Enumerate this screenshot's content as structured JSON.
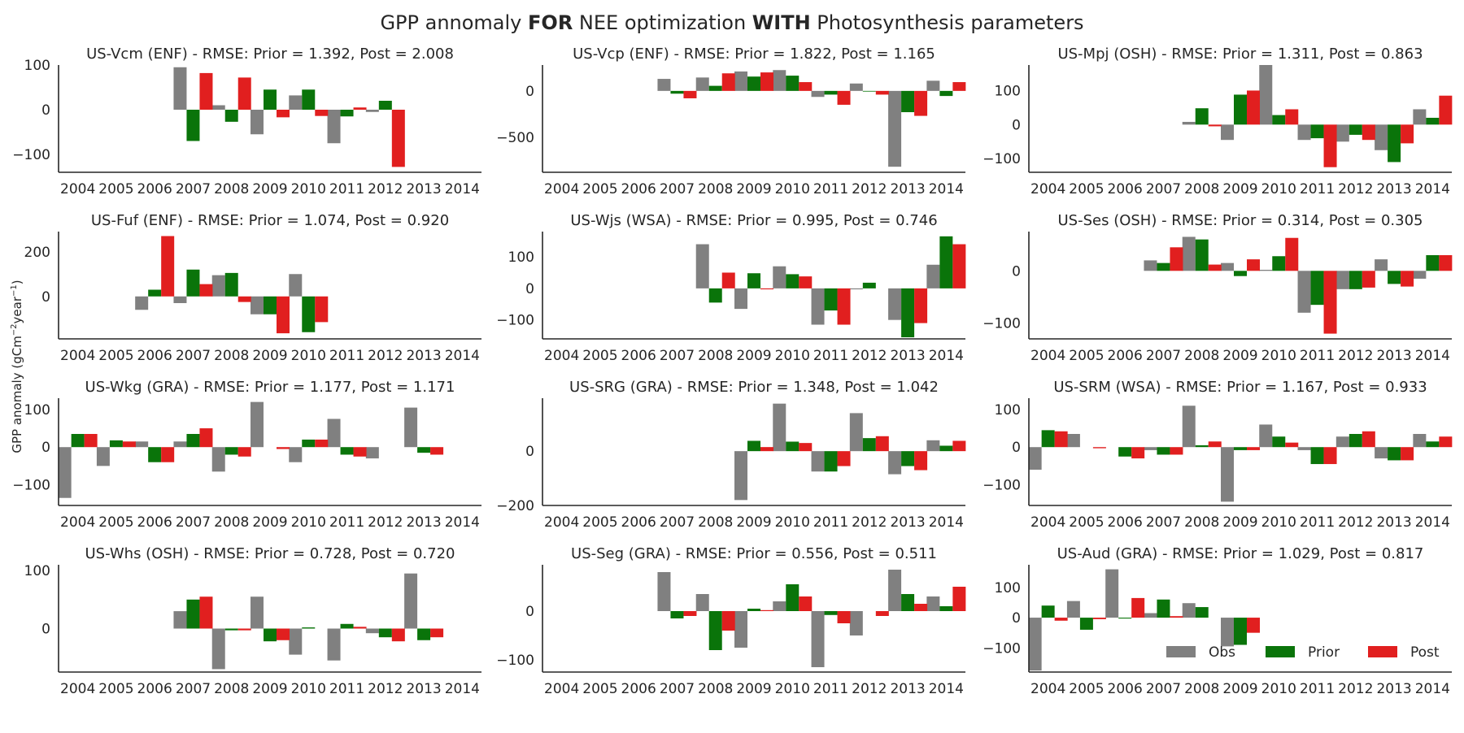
{
  "figure": {
    "title_parts": [
      "GPP annomaly ",
      "FOR",
      " NEE optimization ",
      "WITH",
      " Photosynthesis parameters"
    ],
    "ylabel": "GPP anomaly (gCm",
    "ylabel_exp1": "−2",
    "ylabel_mid": "year",
    "ylabel_exp2": "−1",
    "ylabel_end": ")"
  },
  "colors": {
    "Obs": "#808080",
    "Prior": "#0a740a",
    "Post": "#e11f1f"
  },
  "legend": {
    "entries": [
      "Obs",
      "Prior",
      "Post"
    ],
    "placement": "lower-right of last panel"
  },
  "chart_data": [
    {
      "type": "bar",
      "title": "US-Vcm (ENF) - RMSE: Prior = 1.392, Post = 2.008",
      "categories": [
        "2004",
        "2005",
        "2006",
        "2007",
        "2008",
        "2009",
        "2010",
        "2011",
        "2012",
        "2013",
        "2014"
      ],
      "ylim": [
        -140,
        100
      ],
      "yticks": [
        -100,
        0,
        100
      ],
      "series": [
        {
          "name": "Obs",
          "values": [
            null,
            null,
            null,
            95,
            10,
            -55,
            32,
            -75,
            -5,
            null,
            null
          ]
        },
        {
          "name": "Prior",
          "values": [
            null,
            null,
            null,
            -70,
            -27,
            45,
            45,
            -15,
            20,
            null,
            null
          ]
        },
        {
          "name": "Post",
          "values": [
            null,
            null,
            null,
            82,
            72,
            -17,
            -14,
            5,
            -128,
            null,
            null
          ]
        }
      ]
    },
    {
      "type": "bar",
      "title": "US-Vcp (ENF) - RMSE: Prior = 1.822, Post = 1.165",
      "categories": [
        "2004",
        "2005",
        "2006",
        "2007",
        "2008",
        "2009",
        "2010",
        "2011",
        "2012",
        "2013",
        "2014"
      ],
      "ylim": [
        -880,
        280
      ],
      "yticks": [
        -500,
        0
      ],
      "series": [
        {
          "name": "Obs",
          "values": [
            null,
            null,
            null,
            130,
            145,
            210,
            225,
            -65,
            80,
            -820,
            110
          ]
        },
        {
          "name": "Prior",
          "values": [
            null,
            null,
            null,
            -30,
            55,
            155,
            165,
            -40,
            0,
            -230,
            -55
          ]
        },
        {
          "name": "Post",
          "values": [
            null,
            null,
            null,
            -80,
            190,
            200,
            95,
            -150,
            -40,
            -270,
            95
          ]
        }
      ]
    },
    {
      "type": "bar",
      "title": "US-Mpj (OSH) - RMSE: Prior = 1.311, Post = 0.863",
      "categories": [
        "2004",
        "2005",
        "2006",
        "2007",
        "2008",
        "2009",
        "2010",
        "2011",
        "2012",
        "2013",
        "2014"
      ],
      "ylim": [
        -140,
        175
      ],
      "yticks": [
        -100,
        0,
        100
      ],
      "series": [
        {
          "name": "Obs",
          "values": [
            null,
            null,
            null,
            null,
            8,
            -45,
            175,
            -45,
            -50,
            -75,
            45
          ]
        },
        {
          "name": "Prior",
          "values": [
            null,
            null,
            null,
            null,
            48,
            88,
            28,
            -40,
            -30,
            -110,
            20
          ]
        },
        {
          "name": "Post",
          "values": [
            null,
            null,
            null,
            null,
            -5,
            100,
            45,
            -125,
            -45,
            -55,
            85
          ]
        }
      ]
    },
    {
      "type": "bar",
      "title": "US-Fuf (ENF) - RMSE: Prior = 1.074, Post = 0.920",
      "categories": [
        "2004",
        "2005",
        "2006",
        "2007",
        "2008",
        "2009",
        "2010",
        "2011",
        "2012",
        "2013",
        "2014"
      ],
      "ylim": [
        -190,
        290
      ],
      "yticks": [
        0,
        200
      ],
      "series": [
        {
          "name": "Obs",
          "values": [
            null,
            null,
            -60,
            -30,
            95,
            -80,
            100,
            null,
            null,
            null,
            null
          ]
        },
        {
          "name": "Prior",
          "values": [
            null,
            null,
            30,
            120,
            105,
            -80,
            -160,
            null,
            null,
            null,
            null
          ]
        },
        {
          "name": "Post",
          "values": [
            null,
            null,
            270,
            55,
            -25,
            -165,
            -115,
            null,
            null,
            null,
            null
          ]
        }
      ]
    },
    {
      "type": "bar",
      "title": "US-Wjs (WSA) - RMSE: Prior = 0.995, Post = 0.746",
      "categories": [
        "2004",
        "2005",
        "2006",
        "2007",
        "2008",
        "2009",
        "2010",
        "2011",
        "2012",
        "2013",
        "2014"
      ],
      "ylim": [
        -160,
        180
      ],
      "yticks": [
        -100,
        0,
        100
      ],
      "series": [
        {
          "name": "Obs",
          "values": [
            null,
            null,
            null,
            null,
            140,
            -65,
            70,
            -115,
            -3,
            -100,
            75
          ]
        },
        {
          "name": "Prior",
          "values": [
            null,
            null,
            null,
            null,
            -45,
            48,
            45,
            -70,
            18,
            -155,
            165
          ]
        },
        {
          "name": "Post",
          "values": [
            null,
            null,
            null,
            null,
            50,
            -3,
            38,
            -115,
            null,
            -110,
            140
          ]
        }
      ]
    },
    {
      "type": "bar",
      "title": "US-Ses (OSH) - RMSE: Prior = 0.314, Post = 0.305",
      "categories": [
        "2004",
        "2005",
        "2006",
        "2007",
        "2008",
        "2009",
        "2010",
        "2011",
        "2012",
        "2013",
        "2014"
      ],
      "ylim": [
        -130,
        75
      ],
      "yticks": [
        -100,
        0
      ],
      "series": [
        {
          "name": "Obs",
          "values": [
            null,
            null,
            null,
            20,
            65,
            15,
            2,
            -80,
            -35,
            22,
            -15
          ]
        },
        {
          "name": "Prior",
          "values": [
            null,
            null,
            null,
            15,
            60,
            -10,
            28,
            -65,
            -35,
            -25,
            30
          ]
        },
        {
          "name": "Post",
          "values": [
            null,
            null,
            null,
            45,
            12,
            22,
            63,
            -120,
            -32,
            -30,
            30
          ]
        }
      ]
    },
    {
      "type": "bar",
      "title": "US-Wkg (GRA) - RMSE: Prior = 1.177, Post = 1.171",
      "categories": [
        "2004",
        "2005",
        "2006",
        "2007",
        "2008",
        "2009",
        "2010",
        "2011",
        "2012",
        "2013",
        "2014"
      ],
      "ylim": [
        -155,
        130
      ],
      "yticks": [
        -100,
        0,
        100
      ],
      "series": [
        {
          "name": "Obs",
          "values": [
            -135,
            -50,
            15,
            15,
            -65,
            120,
            -40,
            75,
            -30,
            105,
            null
          ]
        },
        {
          "name": "Prior",
          "values": [
            35,
            18,
            -40,
            35,
            -20,
            null,
            20,
            -20,
            null,
            -15,
            null
          ]
        },
        {
          "name": "Post",
          "values": [
            35,
            15,
            -40,
            50,
            -25,
            -5,
            20,
            -25,
            null,
            -20,
            null
          ]
        }
      ]
    },
    {
      "type": "bar",
      "title": "US-SRG (GRA) - RMSE: Prior = 1.348, Post = 1.042",
      "categories": [
        "2004",
        "2005",
        "2006",
        "2007",
        "2008",
        "2009",
        "2010",
        "2011",
        "2012",
        "2013",
        "2014"
      ],
      "ylim": [
        -200,
        195
      ],
      "yticks": [
        -200,
        0
      ],
      "series": [
        {
          "name": "Obs",
          "values": [
            null,
            null,
            null,
            null,
            null,
            -180,
            175,
            -75,
            140,
            -85,
            40
          ]
        },
        {
          "name": "Prior",
          "values": [
            null,
            null,
            null,
            null,
            null,
            38,
            35,
            -75,
            48,
            -55,
            20
          ]
        },
        {
          "name": "Post",
          "values": [
            null,
            null,
            null,
            null,
            null,
            15,
            30,
            -55,
            55,
            -70,
            38
          ]
        }
      ]
    },
    {
      "type": "bar",
      "title": "US-SRM (WSA) - RMSE: Prior = 1.167, Post = 0.933",
      "categories": [
        "2004",
        "2005",
        "2006",
        "2007",
        "2008",
        "2009",
        "2010",
        "2011",
        "2012",
        "2013",
        "2014"
      ],
      "ylim": [
        -155,
        130
      ],
      "yticks": [
        -100,
        0,
        100
      ],
      "series": [
        {
          "name": "Obs",
          "values": [
            -60,
            35,
            null,
            -8,
            110,
            -145,
            60,
            -8,
            28,
            -30,
            35
          ]
        },
        {
          "name": "Prior",
          "values": [
            45,
            null,
            -25,
            -20,
            5,
            -8,
            28,
            -45,
            35,
            -35,
            15
          ]
        },
        {
          "name": "Post",
          "values": [
            42,
            -3,
            -30,
            -20,
            15,
            -8,
            12,
            -45,
            42,
            -35,
            28
          ]
        }
      ]
    },
    {
      "type": "bar",
      "title": "US-Whs (OSH) - RMSE: Prior = 0.728, Post = 0.720",
      "categories": [
        "2004",
        "2005",
        "2006",
        "2007",
        "2008",
        "2009",
        "2010",
        "2011",
        "2012",
        "2013",
        "2014"
      ],
      "ylim": [
        -75,
        110
      ],
      "yticks": [
        0,
        100
      ],
      "series": [
        {
          "name": "Obs",
          "values": [
            null,
            null,
            null,
            30,
            -70,
            55,
            -45,
            -55,
            -8,
            95,
            null
          ]
        },
        {
          "name": "Prior",
          "values": [
            null,
            null,
            null,
            50,
            -3,
            -22,
            2,
            8,
            -15,
            -20,
            null
          ]
        },
        {
          "name": "Post",
          "values": [
            null,
            null,
            null,
            55,
            -3,
            -20,
            null,
            3,
            -22,
            -15,
            null
          ]
        }
      ]
    },
    {
      "type": "bar",
      "title": "US-Seg (GRA) - RMSE: Prior = 0.556, Post = 0.511",
      "categories": [
        "2004",
        "2005",
        "2006",
        "2007",
        "2008",
        "2009",
        "2010",
        "2011",
        "2012",
        "2013",
        "2014"
      ],
      "ylim": [
        -125,
        95
      ],
      "yticks": [
        -100,
        0
      ],
      "series": [
        {
          "name": "Obs",
          "values": [
            null,
            null,
            null,
            80,
            35,
            -75,
            20,
            -115,
            -50,
            85,
            30
          ]
        },
        {
          "name": "Prior",
          "values": [
            null,
            null,
            null,
            -15,
            -80,
            5,
            55,
            -8,
            null,
            35,
            10
          ]
        },
        {
          "name": "Post",
          "values": [
            null,
            null,
            null,
            -10,
            -40,
            2,
            30,
            -25,
            -10,
            15,
            50
          ]
        }
      ]
    },
    {
      "type": "bar",
      "title": "US-Aud (GRA) - RMSE: Prior = 1.029, Post = 0.817",
      "categories": [
        "2004",
        "2005",
        "2006",
        "2007",
        "2008",
        "2009",
        "2010",
        "2011",
        "2012",
        "2013",
        "2014"
      ],
      "ylim": [
        -180,
        175
      ],
      "yticks": [
        -100,
        0,
        100
      ],
      "series": [
        {
          "name": "Obs",
          "values": [
            -175,
            55,
            160,
            15,
            48,
            -95,
            null,
            null,
            null,
            null,
            null
          ]
        },
        {
          "name": "Prior",
          "values": [
            40,
            -40,
            -3,
            60,
            35,
            -90,
            null,
            null,
            null,
            null,
            null
          ]
        },
        {
          "name": "Post",
          "values": [
            -10,
            -5,
            65,
            5,
            null,
            -50,
            null,
            null,
            null,
            null,
            null
          ]
        }
      ]
    }
  ]
}
